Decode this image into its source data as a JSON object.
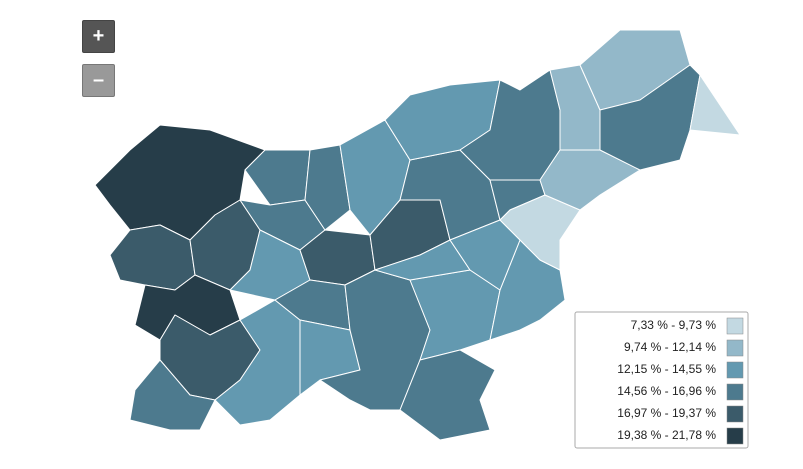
{
  "zoom": {
    "in": "+",
    "out": "–"
  },
  "legend": {
    "items": [
      {
        "label": "7,33 % - 9,73 %",
        "color": "#c3d9e2"
      },
      {
        "label": "9,74 % - 12,14 %",
        "color": "#93b8c9"
      },
      {
        "label": "12,15 % - 14,55 %",
        "color": "#6399b0"
      },
      {
        "label": "14,56 % - 16,96 %",
        "color": "#4d7a8e"
      },
      {
        "label": "16,97 % - 19,37 %",
        "color": "#3b5b6a"
      },
      {
        "label": "19,38 % - 21,78 %",
        "color": "#263d49"
      }
    ]
  }
}
